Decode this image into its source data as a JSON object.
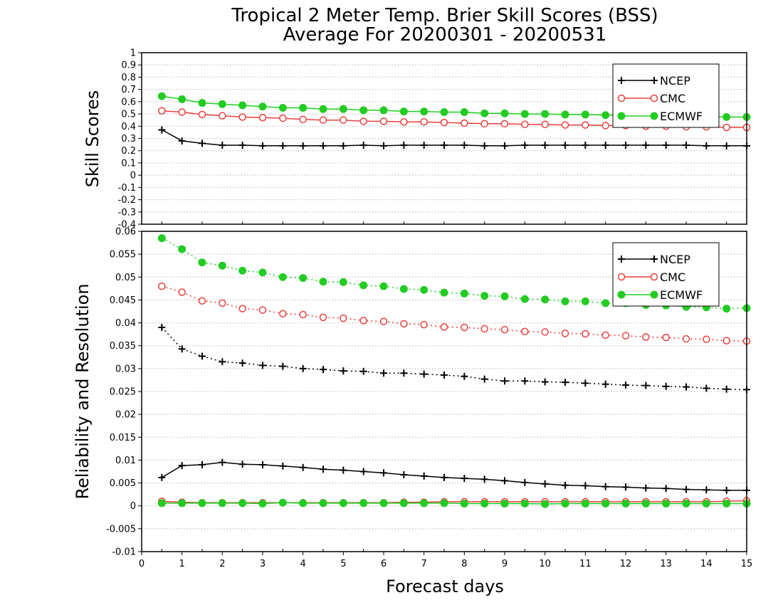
{
  "title_line1": "Tropical 2 Meter Temp. Brier Skill Scores (BSS)",
  "title_line2": "Average For 20200301 - 20200531",
  "chart_data": [
    {
      "type": "line",
      "panel": "top",
      "ylabel": "Skill Scores",
      "ylim": [
        -0.4,
        1.0
      ],
      "yticks": [
        "1",
        "0.9",
        "0.8",
        "0.7",
        "0.6",
        "0.5",
        "0.4",
        "0.3",
        "0.2",
        "0.1",
        "0",
        "-0.1",
        "-0.2",
        "-0.3",
        "-0.4"
      ],
      "xlim": [
        0,
        15
      ],
      "grid": "horizontal dotted",
      "legend_position": "top-right",
      "series": [
        {
          "name": "NCEP",
          "marker": "plus",
          "style": "solid",
          "color": "#000000",
          "x": [
            0.5,
            1,
            1.5,
            2,
            2.5,
            3,
            3.5,
            4,
            4.5,
            5,
            5.5,
            6,
            6.5,
            7,
            7.5,
            8,
            8.5,
            9,
            9.5,
            10,
            10.5,
            11,
            11.5,
            12,
            12.5,
            13,
            13.5,
            14,
            14.5,
            15
          ],
          "y": [
            0.37,
            0.28,
            0.26,
            0.245,
            0.245,
            0.24,
            0.24,
            0.24,
            0.24,
            0.24,
            0.245,
            0.24,
            0.245,
            0.245,
            0.245,
            0.245,
            0.24,
            0.24,
            0.245,
            0.245,
            0.245,
            0.245,
            0.245,
            0.245,
            0.245,
            0.245,
            0.245,
            0.24,
            0.24,
            0.24
          ]
        },
        {
          "name": "CMC",
          "marker": "circle",
          "style": "solid",
          "color": "#e84040",
          "x": [
            0.5,
            1,
            1.5,
            2,
            2.5,
            3,
            3.5,
            4,
            4.5,
            5,
            5.5,
            6,
            6.5,
            7,
            7.5,
            8,
            8.5,
            9,
            9.5,
            10,
            10.5,
            11,
            11.5,
            12,
            12.5,
            13,
            13.5,
            14,
            14.5,
            15
          ],
          "y": [
            0.525,
            0.515,
            0.495,
            0.485,
            0.475,
            0.47,
            0.465,
            0.455,
            0.45,
            0.45,
            0.44,
            0.44,
            0.435,
            0.435,
            0.43,
            0.425,
            0.42,
            0.42,
            0.415,
            0.415,
            0.41,
            0.41,
            0.405,
            0.405,
            0.4,
            0.4,
            0.395,
            0.395,
            0.39,
            0.39
          ]
        },
        {
          "name": "ECMWF",
          "marker": "filled-circle",
          "style": "solid",
          "color": "#22cc22",
          "x": [
            0.5,
            1,
            1.5,
            2,
            2.5,
            3,
            3.5,
            4,
            4.5,
            5,
            5.5,
            6,
            6.5,
            7,
            7.5,
            8,
            8.5,
            9,
            9.5,
            10,
            10.5,
            11,
            11.5,
            12,
            12.5,
            13,
            13.5,
            14,
            14.5,
            15
          ],
          "y": [
            0.645,
            0.62,
            0.59,
            0.58,
            0.57,
            0.56,
            0.55,
            0.55,
            0.54,
            0.54,
            0.53,
            0.53,
            0.52,
            0.52,
            0.515,
            0.515,
            0.505,
            0.505,
            0.5,
            0.5,
            0.495,
            0.495,
            0.49,
            0.49,
            0.485,
            0.485,
            0.48,
            0.48,
            0.475,
            0.475
          ]
        }
      ]
    },
    {
      "type": "line",
      "panel": "bottom",
      "ylabel": "Reliability and Resolution",
      "xlabel": "Forecast days",
      "ylim": [
        -0.01,
        0.06
      ],
      "yticks": [
        "0.06",
        "0.055",
        "0.05",
        "0.045",
        "0.04",
        "0.035",
        "0.03",
        "0.025",
        "0.02",
        "0.015",
        "0.01",
        "0.005",
        "0",
        "-0.005",
        "-0.01"
      ],
      "xlim": [
        0,
        15
      ],
      "xticks": [
        "0",
        "1",
        "2",
        "3",
        "4",
        "5",
        "6",
        "7",
        "8",
        "9",
        "10",
        "11",
        "12",
        "13",
        "14",
        "15"
      ],
      "grid": "horizontal dotted",
      "legend_position": "top-right",
      "legend": [
        {
          "name": "NCEP",
          "marker": "plus",
          "color": "#000000"
        },
        {
          "name": "CMC",
          "marker": "circle",
          "color": "#e84040"
        },
        {
          "name": "ECMWF",
          "marker": "filled-circle",
          "color": "#22cc22"
        }
      ],
      "series": [
        {
          "name": "NCEP resolution",
          "marker": "plus",
          "style": "dotted",
          "color": "#000000",
          "x": [
            0.5,
            1,
            1.5,
            2,
            2.5,
            3,
            3.5,
            4,
            4.5,
            5,
            5.5,
            6,
            6.5,
            7,
            7.5,
            8,
            8.5,
            9,
            9.5,
            10,
            10.5,
            11,
            11.5,
            12,
            12.5,
            13,
            13.5,
            14,
            14.5,
            15
          ],
          "y": [
            0.039,
            0.0343,
            0.0327,
            0.0315,
            0.0312,
            0.0307,
            0.0305,
            0.03,
            0.0298,
            0.0295,
            0.0294,
            0.029,
            0.029,
            0.0288,
            0.0286,
            0.0283,
            0.0277,
            0.0273,
            0.0273,
            0.0271,
            0.027,
            0.0268,
            0.0266,
            0.0264,
            0.0263,
            0.0261,
            0.026,
            0.0257,
            0.0255,
            0.0254
          ]
        },
        {
          "name": "CMC resolution",
          "marker": "circle",
          "style": "dotted",
          "color": "#e84040",
          "x": [
            0.5,
            1,
            1.5,
            2,
            2.5,
            3,
            3.5,
            4,
            4.5,
            5,
            5.5,
            6,
            6.5,
            7,
            7.5,
            8,
            8.5,
            9,
            9.5,
            10,
            10.5,
            11,
            11.5,
            12,
            12.5,
            13,
            13.5,
            14,
            14.5,
            15
          ],
          "y": [
            0.048,
            0.0467,
            0.0448,
            0.0443,
            0.0431,
            0.0428,
            0.042,
            0.0418,
            0.0412,
            0.041,
            0.0405,
            0.0403,
            0.0398,
            0.0396,
            0.0391,
            0.039,
            0.0387,
            0.0385,
            0.0381,
            0.038,
            0.0377,
            0.0376,
            0.0373,
            0.0372,
            0.0369,
            0.0368,
            0.0365,
            0.0364,
            0.0361,
            0.036
          ]
        },
        {
          "name": "ECMWF resolution",
          "marker": "filled-circle",
          "style": "dotted",
          "color": "#22cc22",
          "x": [
            0.5,
            1,
            1.5,
            2,
            2.5,
            3,
            3.5,
            4,
            4.5,
            5,
            5.5,
            6,
            6.5,
            7,
            7.5,
            8,
            8.5,
            9,
            9.5,
            10,
            10.5,
            11,
            11.5,
            12,
            12.5,
            13,
            13.5,
            14,
            14.5,
            15
          ],
          "y": [
            0.0585,
            0.0561,
            0.0532,
            0.0525,
            0.0514,
            0.051,
            0.05,
            0.0498,
            0.049,
            0.0489,
            0.0482,
            0.048,
            0.0474,
            0.0472,
            0.0466,
            0.0464,
            0.0459,
            0.0458,
            0.0452,
            0.0451,
            0.0447,
            0.0447,
            0.0443,
            0.0443,
            0.0439,
            0.0438,
            0.0435,
            0.0434,
            0.0431,
            0.0432
          ]
        },
        {
          "name": "NCEP reliability",
          "marker": "plus",
          "style": "solid",
          "color": "#000000",
          "x": [
            0.5,
            1,
            1.5,
            2,
            2.5,
            3,
            3.5,
            4,
            4.5,
            5,
            5.5,
            6,
            6.5,
            7,
            7.5,
            8,
            8.5,
            9,
            9.5,
            10,
            10.5,
            11,
            11.5,
            12,
            12.5,
            13,
            13.5,
            14,
            14.5,
            15
          ],
          "y": [
            0.0062,
            0.0088,
            0.009,
            0.0095,
            0.0091,
            0.009,
            0.0087,
            0.0084,
            0.008,
            0.0078,
            0.0075,
            0.0072,
            0.0068,
            0.0065,
            0.0062,
            0.006,
            0.0058,
            0.0055,
            0.0051,
            0.0048,
            0.0045,
            0.0044,
            0.0042,
            0.0041,
            0.0039,
            0.0038,
            0.0036,
            0.0035,
            0.0034,
            0.0034
          ]
        },
        {
          "name": "CMC reliability",
          "marker": "circle",
          "style": "solid",
          "color": "#e84040",
          "x": [
            0.5,
            1,
            1.5,
            2,
            2.5,
            3,
            3.5,
            4,
            4.5,
            5,
            5.5,
            6,
            6.5,
            7,
            7.5,
            8,
            8.5,
            9,
            9.5,
            10,
            10.5,
            11,
            11.5,
            12,
            12.5,
            13,
            13.5,
            14,
            14.5,
            15
          ],
          "y": [
            0.001,
            0.0008,
            0.0007,
            0.0007,
            0.0007,
            0.0007,
            0.0007,
            0.0007,
            0.0007,
            0.0007,
            0.0007,
            0.0007,
            0.0008,
            0.0008,
            0.0009,
            0.0009,
            0.0009,
            0.0009,
            0.0009,
            0.0009,
            0.0009,
            0.0009,
            0.0009,
            0.0009,
            0.0009,
            0.0009,
            0.0009,
            0.0009,
            0.001,
            0.0011
          ]
        },
        {
          "name": "ECMWF reliability",
          "marker": "filled-circle",
          "style": "solid",
          "color": "#22cc22",
          "x": [
            0.5,
            1,
            1.5,
            2,
            2.5,
            3,
            3.5,
            4,
            4.5,
            5,
            5.5,
            6,
            6.5,
            7,
            7.5,
            8,
            8.5,
            9,
            9.5,
            10,
            10.5,
            11,
            11.5,
            12,
            12.5,
            13,
            13.5,
            14,
            14.5,
            15
          ],
          "y": [
            0.0006,
            0.0006,
            0.0006,
            0.0006,
            0.0006,
            0.0005,
            0.0007,
            0.0006,
            0.0006,
            0.0006,
            0.0006,
            0.0006,
            0.0006,
            0.0006,
            0.0006,
            0.0005,
            0.0005,
            0.0005,
            0.0005,
            0.0004,
            0.0005,
            0.0005,
            0.0005,
            0.0005,
            0.0005,
            0.0005,
            0.0005,
            0.0005,
            0.0005,
            0.0005
          ]
        }
      ]
    }
  ]
}
